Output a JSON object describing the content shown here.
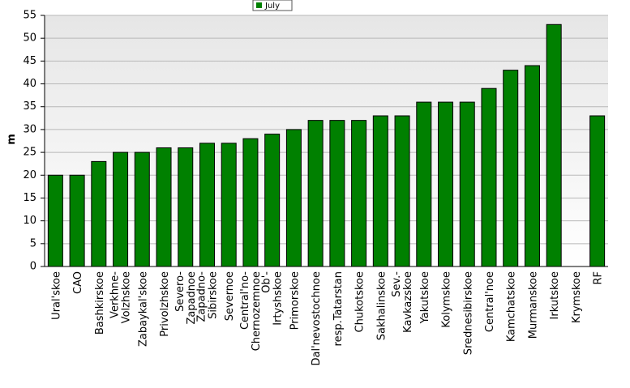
{
  "chart_data": {
    "type": "bar",
    "y_label": "m",
    "categories": [
      "Ural'skoe",
      "CAO",
      "Bashkirskoe",
      "Verkhne-Volzhskoe",
      "Zabaykal'skoe",
      "Privolzhskoe",
      "Severo-Zapadnoe",
      "Zapadno-Sibirskoe",
      "Severnoe",
      "Central'no-Chernozemnoe",
      "Ob'-Irtyshskoe",
      "Primorskoe",
      "Dal'nevostochnoe",
      "resp.Tatarstan",
      "Chukotskoe",
      "Sakhalinskoe",
      "Sev.-Kavkazskoe",
      "Yakutskoe",
      "Kolymskoe",
      "Srednesibirskoe",
      "Central'noe",
      "Kamchatskoe",
      "Murmanskoe",
      "Irkutskoe",
      "Krymskoe",
      "RF"
    ],
    "series": [
      {
        "name": "July",
        "color": "#008000",
        "values": [
          20,
          20,
          23,
          25,
          25,
          26,
          26,
          27,
          27,
          28,
          29,
          30,
          32,
          32,
          32,
          33,
          33,
          36,
          36,
          36,
          39,
          43,
          44,
          53,
          null,
          33
        ]
      }
    ],
    "ylim": [
      0,
      55
    ],
    "yticks": [
      0,
      5,
      10,
      15,
      20,
      25,
      30,
      35,
      40,
      45,
      50,
      55
    ],
    "grid": true
  }
}
